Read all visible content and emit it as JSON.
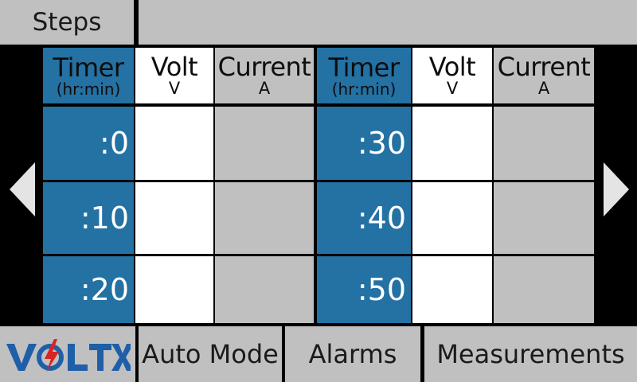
{
  "header": {
    "steps_tab": "Steps"
  },
  "table": {
    "timer_label": "Timer",
    "timer_unit": "(hr:min)",
    "volt_label": "Volt",
    "volt_unit": "V",
    "current_label": "Current",
    "current_unit": "A",
    "left_times": [
      ":0",
      ":10",
      ":20"
    ],
    "right_times": [
      ":30",
      ":40",
      ":50"
    ]
  },
  "nav": {
    "prev_icon": "triangle-left-icon",
    "next_icon": "triangle-right-icon"
  },
  "footer": {
    "logo_text": "VOLTX",
    "auto_mode": "Auto Mode",
    "alarms": "Alarms",
    "measurements": "Measurements"
  },
  "colors": {
    "timer_blue": "#2471a3",
    "panel_gray": "#c0c0c0",
    "logo_blue": "#1f5fa8",
    "logo_red": "#d92424"
  }
}
